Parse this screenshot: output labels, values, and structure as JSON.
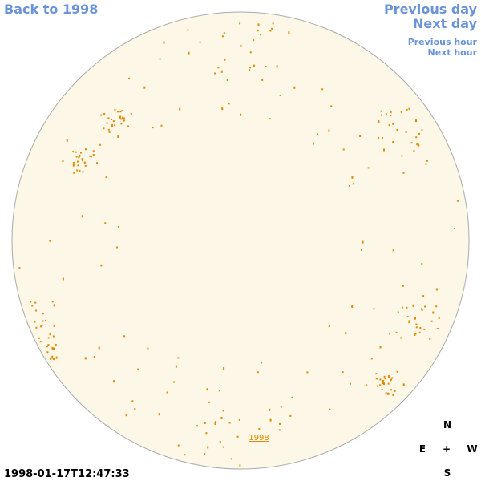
{
  "nav": {
    "back": "Back to 1998",
    "previous_day": "Previous day",
    "next_day": "Next day",
    "previous_hour": "Previous hour",
    "next_hour": "Next hour"
  },
  "disk_label": "1998",
  "timestamp": "1998-01-17T12:47:33",
  "compass": {
    "north": "N",
    "east": "E",
    "center": "+",
    "west": "W",
    "south": "S"
  }
}
